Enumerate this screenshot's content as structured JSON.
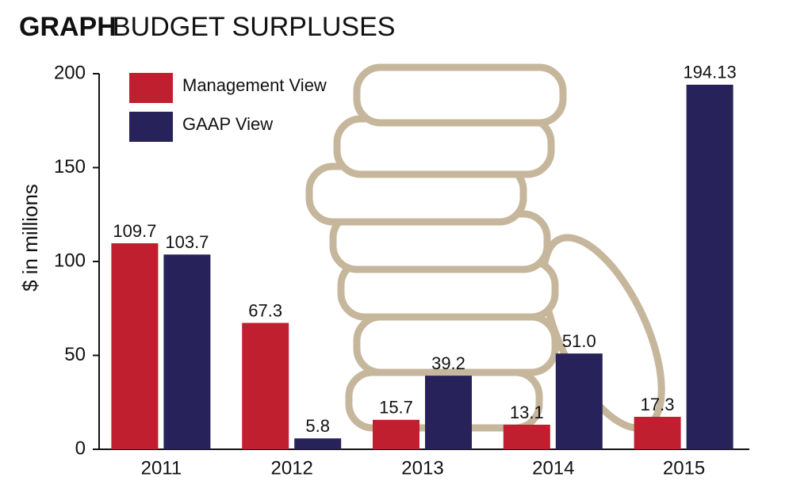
{
  "chart_data": {
    "type": "bar",
    "title_label": "GRAPH",
    "title": "BUDGET SURPLUSES",
    "y_label": "$ in millions",
    "categories": [
      "2011",
      "2012",
      "2013",
      "2014",
      "2015"
    ],
    "series": [
      {
        "name": "Management View",
        "color": "#c01f2f",
        "values": [
          109.7,
          67.3,
          15.7,
          13.1,
          17.3
        ],
        "value_labels": [
          "109.7",
          "67.3",
          "15.7",
          "13.1",
          "17.3"
        ]
      },
      {
        "name": "GAAP View",
        "color": "#27235a",
        "values": [
          103.7,
          5.8,
          39.2,
          51.0,
          194.13
        ],
        "value_labels": [
          "103.7",
          "5.8",
          "39.2",
          "51.0",
          "194.13"
        ]
      }
    ],
    "ylim": [
      0,
      200
    ],
    "yticks": [
      0,
      50,
      100,
      150,
      200
    ],
    "grid": false,
    "legend": "top-left"
  }
}
